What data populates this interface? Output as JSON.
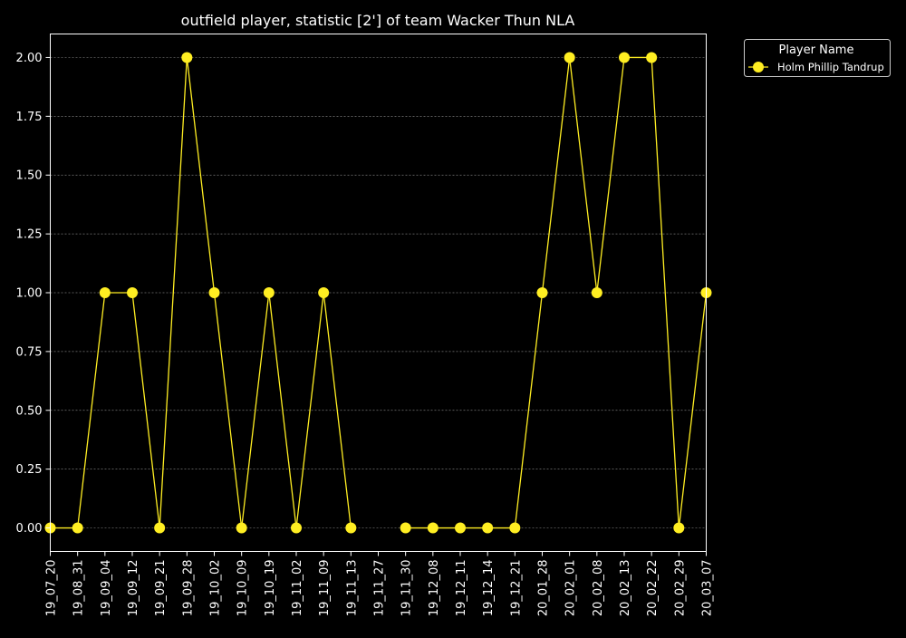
{
  "chart_data": {
    "type": "line",
    "title": "outfield player, statistic [2'] of team Wacker Thun NLA",
    "xlabel": "",
    "ylabel": "",
    "categories": [
      "19_07_20",
      "19_08_31",
      "19_09_04",
      "19_09_12",
      "19_09_21",
      "19_09_28",
      "19_10_02",
      "19_10_09",
      "19_10_19",
      "19_11_02",
      "19_11_09",
      "19_11_13",
      "19_11_27",
      "19_11_30",
      "19_12_08",
      "19_12_11",
      "19_12_14",
      "19_12_21",
      "20_01_28",
      "20_02_01",
      "20_02_08",
      "20_02_13",
      "20_02_22",
      "20_02_29",
      "20_03_07"
    ],
    "series": [
      {
        "name": "Holm Phillip Tandrup",
        "color": "#ffee22",
        "values": [
          0,
          0,
          1,
          1,
          0,
          2,
          1,
          0,
          1,
          0,
          1,
          0,
          null,
          0,
          0,
          0,
          0,
          0,
          1,
          2,
          1,
          2,
          2,
          0,
          1
        ]
      }
    ],
    "ylim": [
      -0.1,
      2.1
    ],
    "yticks": [
      "0.00",
      "0.25",
      "0.50",
      "0.75",
      "1.00",
      "1.25",
      "1.50",
      "1.75",
      "2.00"
    ],
    "grid": true,
    "legend": {
      "title": "Player Name",
      "position": "outside-top-right"
    },
    "colors": {
      "background": "#000000",
      "foreground": "#ffffff",
      "grid": "#777777"
    }
  }
}
